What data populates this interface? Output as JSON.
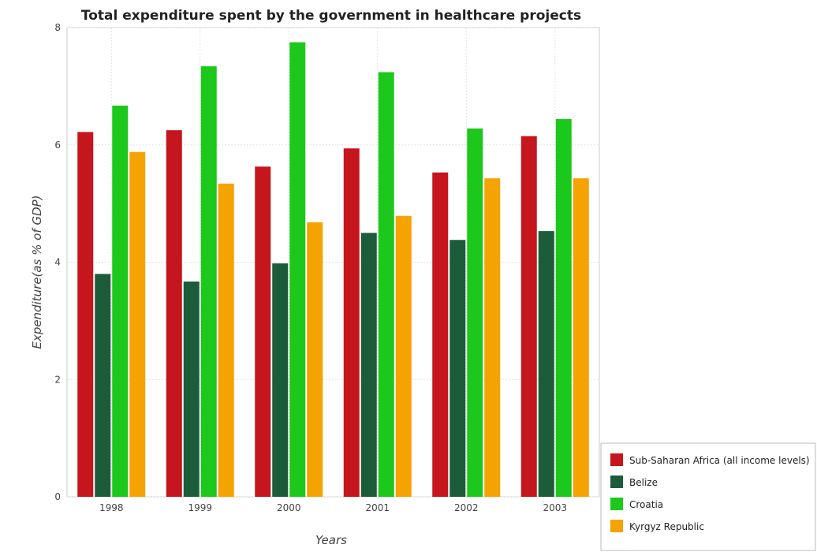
{
  "chart_data": {
    "type": "bar",
    "title": "Total expenditure spent by the government in healthcare projects",
    "xlabel": "Years",
    "ylabel": "Expenditure(as % of GDP)",
    "categories": [
      "1998",
      "1999",
      "2000",
      "2001",
      "2002",
      "2003"
    ],
    "ylim": [
      0,
      8
    ],
    "yticks": [
      "0",
      "2",
      "4",
      "6",
      "8"
    ],
    "grid": true,
    "legend_position": "bottom-right",
    "series": [
      {
        "name": "Sub-Saharan Africa (all income levels)",
        "color": "#c4161c",
        "values": [
          6.22,
          6.25,
          5.63,
          5.94,
          5.53,
          6.15
        ]
      },
      {
        "name": "Belize",
        "color": "#1d5c3a",
        "values": [
          3.8,
          3.67,
          3.98,
          4.5,
          4.38,
          4.53
        ]
      },
      {
        "name": "Croatia",
        "color": "#1cc81c",
        "values": [
          6.67,
          7.34,
          7.75,
          7.24,
          6.28,
          6.44
        ]
      },
      {
        "name": "Kyrgyz Republic",
        "color": "#f5a300",
        "values": [
          5.88,
          5.34,
          4.68,
          4.79,
          5.43,
          5.43
        ]
      }
    ]
  }
}
